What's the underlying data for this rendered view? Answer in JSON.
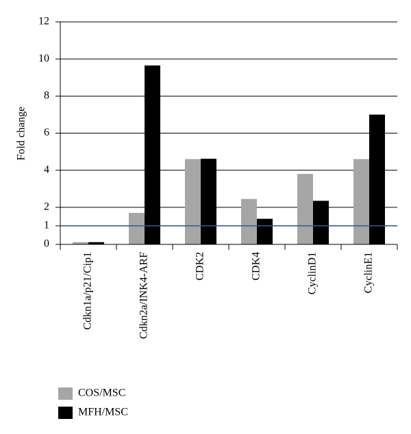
{
  "chart_data": {
    "type": "bar",
    "y_label": "Fold change",
    "categories": [
      "Cdkn1a/p21/Cip1",
      "Cdkn2a/INK4-ARF",
      "CDK2",
      "CDK4",
      "CyclinD1",
      "CyclinE1"
    ],
    "series": [
      {
        "name": "COS/MSC",
        "color": "#a6a6a6",
        "values": [
          0.12,
          1.7,
          4.6,
          2.45,
          3.8,
          4.6
        ]
      },
      {
        "name": "MFH/MSC",
        "color": "#000000",
        "values": [
          0.12,
          9.65,
          4.62,
          1.38,
          2.35,
          7.0
        ]
      }
    ],
    "ylim": [
      0,
      12
    ],
    "yticks": [
      0,
      1,
      2,
      4,
      6,
      8,
      10,
      12
    ],
    "grid": true,
    "reference_line": {
      "value": 1,
      "color": "#2e5c8a"
    }
  }
}
